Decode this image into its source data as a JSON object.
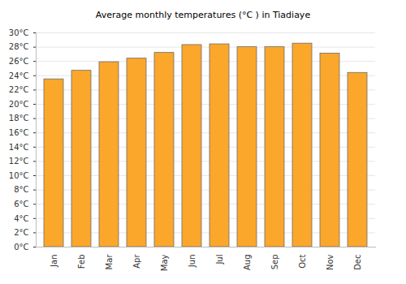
{
  "chart_data": {
    "type": "bar",
    "title": "Average monthly temperatures (°C ) in Tiadiaye",
    "categories": [
      "Jan",
      "Feb",
      "Mar",
      "Apr",
      "May",
      "Jun",
      "Jul",
      "Aug",
      "Sep",
      "Oct",
      "Nov",
      "Dec"
    ],
    "values": [
      23.5,
      24.7,
      25.9,
      26.4,
      27.2,
      28.3,
      28.4,
      28.0,
      28.0,
      28.5,
      27.1,
      24.4
    ],
    "color": "#fba72b",
    "ylim": [
      0,
      30
    ],
    "yticks": [
      {
        "value": 0,
        "label": "0°C"
      },
      {
        "value": 2,
        "label": "2°C"
      },
      {
        "value": 4,
        "label": "4°C"
      },
      {
        "value": 6,
        "label": "6°C"
      },
      {
        "value": 8,
        "label": "8°C"
      },
      {
        "value": 10,
        "label": "10°C"
      },
      {
        "value": 12,
        "label": "12°C"
      },
      {
        "value": 14,
        "label": "14°C"
      },
      {
        "value": 16,
        "label": "16°C"
      },
      {
        "value": 18,
        "label": "18°C"
      },
      {
        "value": 20,
        "label": "20°C"
      },
      {
        "value": 22,
        "label": "22°C"
      },
      {
        "value": 24,
        "label": "24°C"
      },
      {
        "value": 26,
        "label": "26°C"
      },
      {
        "value": 28,
        "label": "28°C"
      },
      {
        "value": 30,
        "label": "30°C"
      }
    ],
    "grid": true
  }
}
